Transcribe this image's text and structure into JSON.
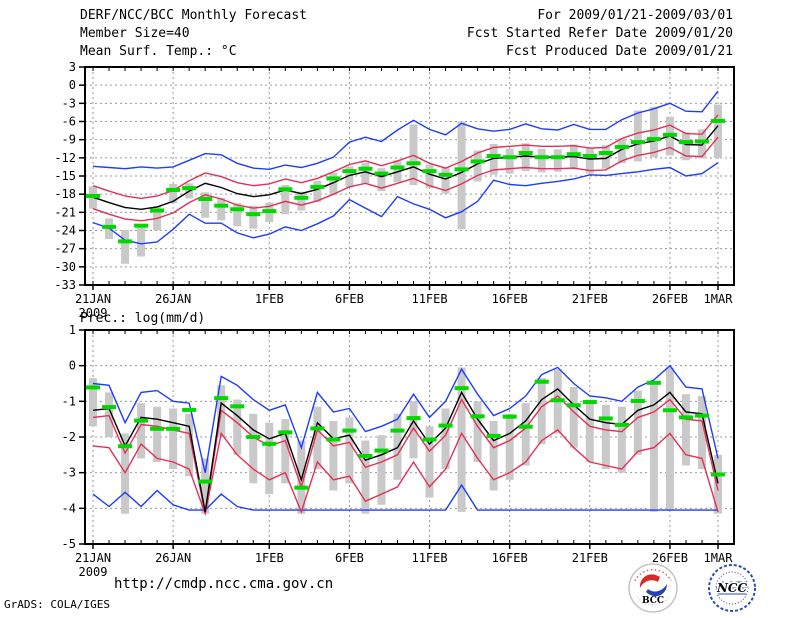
{
  "header": {
    "title": "DERF/NCC/BCC Monthly Forecast",
    "member_size": "Member Size=40",
    "for_range": "For 2009/01/21-2009/03/01",
    "fcst_started": "Fcst Started Refer Date 2009/01/20",
    "fcst_produced": "Fcst Produced Date 2009/01/21"
  },
  "footer": {
    "url": "http://cmdp.ncc.cma.gov.cn",
    "credit": "GrADS: COLA/IGES",
    "logo_bcc_label": "BCC",
    "logo_ncc_label": "NCC"
  },
  "colors": {
    "bar_gray": "#c9c9c9",
    "line_blue": "#1e3cff",
    "line_red": "#e43055",
    "line_black": "#000000",
    "dash_green": "#00d800",
    "grid_gray": "#9a9a9a"
  },
  "chart_data": [
    {
      "id": "temperature",
      "type": "line",
      "title": "Mean Surf. Temp.: °C",
      "days": 40,
      "ymax": 3,
      "ymin": -33,
      "ystep": 3,
      "yticks": [
        3,
        0,
        -3,
        -6,
        -9,
        -12,
        -15,
        -18,
        -21,
        -24,
        -27,
        -30,
        -33
      ],
      "xticks": [
        {
          "day": 1,
          "label": "21JAN",
          "sublabel": "2009"
        },
        {
          "day": 6,
          "label": "26JAN"
        },
        {
          "day": 12,
          "label": "1FEB"
        },
        {
          "day": 17,
          "label": "6FEB"
        },
        {
          "day": 22,
          "label": "11FEB"
        },
        {
          "day": 27,
          "label": "16FEB"
        },
        {
          "day": 32,
          "label": "21FEB"
        },
        {
          "day": 37,
          "label": "26FEB"
        },
        {
          "day": 40,
          "label": "1MAR"
        }
      ],
      "series": [
        {
          "name": "spread-bars-gray",
          "type": "bar",
          "color": "#c9c9c9",
          "top": [
            -16.7,
            -22.0,
            -23.9,
            -23.0,
            -20.0,
            -16.3,
            -16.2,
            -17.7,
            -18.6,
            -19.5,
            -19.9,
            -19.4,
            -16.5,
            -17.6,
            -15.8,
            -14.5,
            -13.4,
            -12.8,
            -13.7,
            -12.4,
            -6.5,
            -13.1,
            -13.5,
            -6.0,
            -10.8,
            -9.7,
            -10.5,
            -9.6,
            -10.5,
            -10.6,
            -9.8,
            -10.3,
            -9.9,
            -8.8,
            -4.2,
            -3.6,
            -5.2,
            -7.7,
            -7.3,
            -3.2
          ],
          "bottom": [
            -20.4,
            -25.4,
            -29.5,
            -28.3,
            -24.0,
            -19.5,
            -18.7,
            -21.9,
            -22.3,
            -23.3,
            -23.7,
            -22.6,
            -21.3,
            -20.7,
            -19.3,
            -18.2,
            -16.9,
            -16.2,
            -17.5,
            -16.0,
            -16.5,
            -17.0,
            -17.9,
            -23.8,
            -15.9,
            -14.8,
            -14.6,
            -14.2,
            -14.4,
            -14.3,
            -13.9,
            -14.6,
            -13.8,
            -12.9,
            -12.6,
            -11.9,
            -11.6,
            -12.4,
            -12.1,
            -12.0
          ]
        },
        {
          "name": "line-blue-lower-min",
          "type": "line",
          "color": "#1e3cff",
          "values": [
            -22.7,
            -23.6,
            -25.6,
            -26.2,
            -25.9,
            -23.8,
            -21.3,
            -22.8,
            -22.8,
            -24.4,
            -25.2,
            -24.6,
            -23.4,
            -24.0,
            -22.9,
            -21.6,
            -18.9,
            -20.3,
            -21.7,
            -18.4,
            -19.6,
            -20.5,
            -21.9,
            -20.9,
            -19.2,
            -15.7,
            -16.4,
            -16.6,
            -16.2,
            -15.9,
            -15.5,
            -14.8,
            -14.9,
            -14.6,
            -14.3,
            -13.9,
            -13.6,
            -15.0,
            -14.6,
            -12.8
          ]
        },
        {
          "name": "line-blue-upper-max",
          "type": "line",
          "color": "#1e3cff",
          "values": [
            -13.4,
            -13.6,
            -13.8,
            -13.5,
            -13.7,
            -13.5,
            -12.4,
            -11.3,
            -11.5,
            -12.9,
            -13.7,
            -13.9,
            -13.2,
            -13.6,
            -12.9,
            -11.9,
            -9.4,
            -8.6,
            -9.3,
            -7.4,
            -5.8,
            -7.3,
            -8.2,
            -6.3,
            -7.2,
            -7.6,
            -7.3,
            -6.4,
            -7.2,
            -7.4,
            -6.5,
            -7.3,
            -7.3,
            -5.7,
            -4.6,
            -3.9,
            -3.0,
            -4.3,
            -4.4,
            -1.0
          ]
        },
        {
          "name": "line-red-lower",
          "type": "line",
          "color": "#e43055",
          "values": [
            -20.4,
            -21.3,
            -22.1,
            -22.4,
            -22.0,
            -21.1,
            -19.4,
            -18.1,
            -18.8,
            -19.8,
            -20.3,
            -20.0,
            -19.2,
            -19.8,
            -19.1,
            -18.0,
            -16.8,
            -16.2,
            -17.0,
            -16.2,
            -15.4,
            -16.6,
            -17.4,
            -16.3,
            -14.9,
            -14.0,
            -13.8,
            -13.6,
            -13.8,
            -13.8,
            -13.7,
            -14.1,
            -14.0,
            -12.5,
            -11.6,
            -11.1,
            -10.3,
            -11.7,
            -11.8,
            -8.6
          ]
        },
        {
          "name": "line-red-upper",
          "type": "line",
          "color": "#e43055",
          "values": [
            -16.6,
            -17.5,
            -18.3,
            -18.7,
            -18.3,
            -17.4,
            -15.8,
            -14.5,
            -15.1,
            -16.1,
            -16.6,
            -16.3,
            -15.5,
            -16.1,
            -15.4,
            -14.3,
            -13.1,
            -12.5,
            -13.3,
            -12.5,
            -11.6,
            -12.9,
            -13.7,
            -12.6,
            -11.2,
            -10.3,
            -10.1,
            -9.9,
            -10.1,
            -10.1,
            -10.0,
            -10.4,
            -10.3,
            -8.8,
            -7.9,
            -7.4,
            -6.6,
            -8.0,
            -8.1,
            -4.9
          ]
        },
        {
          "name": "line-black-mean",
          "type": "line",
          "color": "#000000",
          "values": [
            -18.5,
            -19.4,
            -20.2,
            -20.5,
            -20.1,
            -19.2,
            -17.5,
            -16.2,
            -16.9,
            -17.9,
            -18.4,
            -18.1,
            -17.3,
            -17.9,
            -17.2,
            -16.1,
            -14.9,
            -14.3,
            -15.1,
            -14.3,
            -13.5,
            -14.7,
            -15.5,
            -14.4,
            -13.0,
            -12.1,
            -11.9,
            -11.7,
            -11.9,
            -11.9,
            -11.8,
            -12.2,
            -12.1,
            -10.6,
            -9.7,
            -9.2,
            -8.4,
            -9.8,
            -9.9,
            -6.7
          ]
        },
        {
          "name": "green-dashes",
          "type": "dash",
          "color": "#00d800",
          "values": [
            -18.3,
            -23.4,
            -25.8,
            -23.2,
            -20.7,
            -17.3,
            -17.0,
            -18.8,
            -19.9,
            -20.5,
            -21.3,
            -20.8,
            -17.2,
            -18.6,
            -16.8,
            -15.4,
            -14.2,
            -13.8,
            -14.6,
            -13.6,
            -12.9,
            -14.2,
            -14.8,
            -13.9,
            -12.6,
            -11.7,
            -11.9,
            -11.2,
            -11.9,
            -11.9,
            -11.4,
            -11.7,
            -11.2,
            -10.2,
            -9.4,
            -8.9,
            -8.2,
            -9.4,
            -9.3,
            -5.9
          ]
        }
      ]
    },
    {
      "id": "precipitation",
      "type": "line",
      "title": "Prec.: log(mm/d)",
      "days": 40,
      "ymax": 1,
      "ymin": -5,
      "ystep": 1,
      "yticks": [
        1,
        0,
        -1,
        -2,
        -3,
        -4,
        -5
      ],
      "xticks": [
        {
          "day": 1,
          "label": "21JAN",
          "sublabel": "2009"
        },
        {
          "day": 6,
          "label": "26JAN"
        },
        {
          "day": 12,
          "label": "1FEB"
        },
        {
          "day": 17,
          "label": "6FEB"
        },
        {
          "day": 22,
          "label": "11FEB"
        },
        {
          "day": 27,
          "label": "16FEB"
        },
        {
          "day": 32,
          "label": "21FEB"
        },
        {
          "day": 37,
          "label": "26FEB"
        },
        {
          "day": 40,
          "label": "1MAR"
        }
      ],
      "series": [
        {
          "name": "spread-bars-gray",
          "type": "bar",
          "color": "#c9c9c9",
          "top": [
            -0.35,
            -0.75,
            -1.9,
            -1.05,
            -1.15,
            -1.2,
            -1.35,
            -2.6,
            -0.55,
            -0.95,
            -1.35,
            -1.6,
            -1.5,
            -2.1,
            -1.15,
            -1.55,
            -1.45,
            -2.1,
            -1.95,
            -1.35,
            -1.0,
            -1.7,
            -1.2,
            -0.05,
            -1.0,
            -1.55,
            -1.35,
            -1.05,
            -0.35,
            -0.1,
            -0.6,
            -0.95,
            -1.1,
            -1.15,
            -0.7,
            -0.45,
            -0.05,
            -0.8,
            -0.85,
            -2.5
          ],
          "bottom": [
            -1.7,
            -2.0,
            -4.15,
            -2.6,
            -2.7,
            -2.9,
            -3.1,
            -4.15,
            -2.0,
            -2.5,
            -3.3,
            -3.6,
            -3.3,
            -4.15,
            -2.9,
            -3.5,
            -3.3,
            -4.15,
            -3.9,
            -3.2,
            -2.6,
            -3.7,
            -2.9,
            -4.1,
            -2.7,
            -3.5,
            -3.2,
            -2.8,
            -2.2,
            -1.9,
            -2.3,
            -2.7,
            -2.9,
            -3.0,
            -2.5,
            -4.1,
            -4.05,
            -2.8,
            -2.9,
            -4.15
          ]
        },
        {
          "name": "line-blue-lower-min",
          "type": "line",
          "color": "#1e3cff",
          "values": [
            -3.6,
            -3.95,
            -3.55,
            -3.95,
            -3.5,
            -3.9,
            -4.05,
            -4.05,
            -3.6,
            -3.95,
            -4.05,
            -4.05,
            -4.05,
            -4.05,
            -4.05,
            -4.05,
            -4.05,
            -4.05,
            -4.05,
            -4.05,
            -4.05,
            -4.05,
            -4.05,
            -3.35,
            -4.05,
            -4.05,
            -4.05,
            -4.05,
            -4.05,
            -4.05,
            -4.05,
            -4.05,
            -4.05,
            -4.05,
            -4.05,
            -4.05,
            -4.05,
            -4.05,
            -4.05,
            -4.05
          ]
        },
        {
          "name": "line-blue-upper-max",
          "type": "line",
          "color": "#1e3cff",
          "values": [
            -0.5,
            -0.55,
            -1.6,
            -0.75,
            -0.7,
            -1.0,
            -1.05,
            -3.0,
            -0.3,
            -0.55,
            -0.95,
            -1.25,
            -1.1,
            -2.3,
            -0.75,
            -1.3,
            -1.2,
            -1.85,
            -1.7,
            -1.5,
            -0.8,
            -1.45,
            -1.0,
            -0.1,
            -0.8,
            -1.4,
            -1.2,
            -0.85,
            -0.25,
            -0.05,
            -0.5,
            -0.85,
            -0.9,
            -1.0,
            -0.6,
            -0.4,
            0.0,
            -0.6,
            -0.65,
            -2.6
          ]
        },
        {
          "name": "line-red-lower",
          "type": "line",
          "color": "#e43055",
          "values": [
            -2.25,
            -2.3,
            -3.0,
            -2.2,
            -2.6,
            -2.7,
            -2.9,
            -4.15,
            -1.9,
            -2.5,
            -2.9,
            -3.2,
            -3.0,
            -4.1,
            -2.7,
            -3.2,
            -3.1,
            -3.8,
            -3.6,
            -3.4,
            -2.7,
            -3.4,
            -2.9,
            -1.9,
            -2.6,
            -3.2,
            -3.0,
            -2.7,
            -2.1,
            -1.8,
            -2.3,
            -2.7,
            -2.8,
            -2.9,
            -2.4,
            -2.3,
            -1.9,
            -2.5,
            -2.6,
            -4.1
          ]
        },
        {
          "name": "line-red-upper",
          "type": "line",
          "color": "#e43055",
          "values": [
            -1.45,
            -1.4,
            -2.45,
            -1.65,
            -1.7,
            -1.8,
            -1.9,
            -4.15,
            -1.25,
            -1.6,
            -2.0,
            -2.25,
            -2.1,
            -3.4,
            -1.8,
            -2.25,
            -2.15,
            -2.85,
            -2.7,
            -2.5,
            -1.75,
            -2.4,
            -1.95,
            -0.95,
            -1.7,
            -2.3,
            -2.1,
            -1.75,
            -1.15,
            -0.85,
            -1.3,
            -1.7,
            -1.8,
            -1.85,
            -1.45,
            -1.3,
            -0.95,
            -1.5,
            -1.55,
            -3.5
          ]
        },
        {
          "name": "line-black-mean",
          "type": "line",
          "color": "#000000",
          "values": [
            -1.25,
            -1.2,
            -2.25,
            -1.45,
            -1.5,
            -1.6,
            -1.7,
            -4.1,
            -1.05,
            -1.4,
            -1.8,
            -2.05,
            -1.9,
            -3.2,
            -1.6,
            -2.05,
            -1.95,
            -2.65,
            -2.5,
            -2.3,
            -1.55,
            -2.2,
            -1.75,
            -0.75,
            -1.5,
            -2.1,
            -1.9,
            -1.55,
            -0.95,
            -0.65,
            -1.1,
            -1.5,
            -1.6,
            -1.65,
            -1.25,
            -1.1,
            -0.75,
            -1.3,
            -1.35,
            -3.3
          ]
        },
        {
          "name": "green-dashes",
          "type": "dash",
          "color": "#00d800",
          "values": [
            -0.61,
            -1.16,
            -2.26,
            -1.54,
            -1.77,
            -1.77,
            -1.24,
            -3.25,
            -0.91,
            -1.14,
            -2.0,
            -2.19,
            -1.87,
            -3.42,
            -1.76,
            -2.07,
            -1.82,
            -2.53,
            -2.38,
            -1.82,
            -1.47,
            -2.07,
            -1.68,
            -0.63,
            -1.42,
            -1.97,
            -1.43,
            -1.71,
            -0.45,
            -0.97,
            -1.11,
            -1.02,
            -1.48,
            -1.66,
            -0.99,
            -0.48,
            -1.25,
            -1.45,
            -1.4,
            -3.05
          ]
        }
      ]
    }
  ]
}
